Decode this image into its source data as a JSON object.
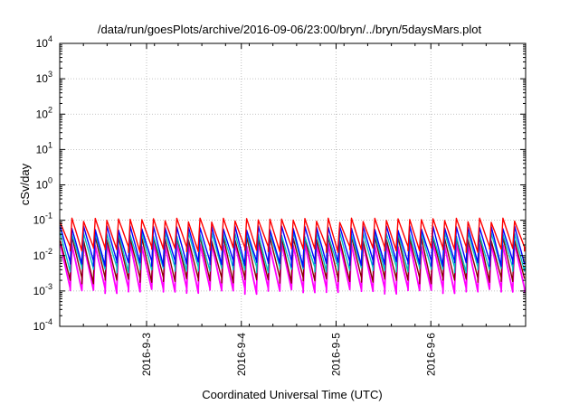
{
  "chart_data": {
    "type": "line",
    "title": "/data/run/goesPlots/archive/2016-09-06/23:00/bryn/../bryn/5daysMars.plot",
    "xlabel": "Coordinated Universal Time (UTC)",
    "ylabel": "cSv/day",
    "y_scale": "log",
    "ylim": [
      0.0001,
      10000
    ],
    "y_ticks": [
      {
        "base": "10",
        "exp": "4"
      },
      {
        "base": "10",
        "exp": "3"
      },
      {
        "base": "10",
        "exp": "2"
      },
      {
        "base": "10",
        "exp": "1"
      },
      {
        "base": "10",
        "exp": "0"
      },
      {
        "base": "10",
        "exp": "-1"
      },
      {
        "base": "10",
        "exp": "-2"
      },
      {
        "base": "10",
        "exp": "-3"
      },
      {
        "base": "10",
        "exp": "-4"
      }
    ],
    "x_range_days": [
      "2016-09-02T02:00",
      "2016-09-07T00:00"
    ],
    "x_ticks": [
      "2016-9-3",
      "2016-9-4",
      "2016-9-5",
      "2016-9-6"
    ],
    "grid": true,
    "series_colors": [
      "#ff0000",
      "#0000ff",
      "#00c0c0",
      "#8b0000",
      "#ff00ff"
    ],
    "pattern": {
      "description": "Repeating sawtooth: sharp rise then exponential decay, roughly 8 cycles per day",
      "peak_values": [
        0.1,
        0.06,
        0.04,
        0.03,
        0.02
      ],
      "trough_values": [
        0.015,
        0.006,
        0.004,
        0.002,
        0.001
      ]
    }
  }
}
